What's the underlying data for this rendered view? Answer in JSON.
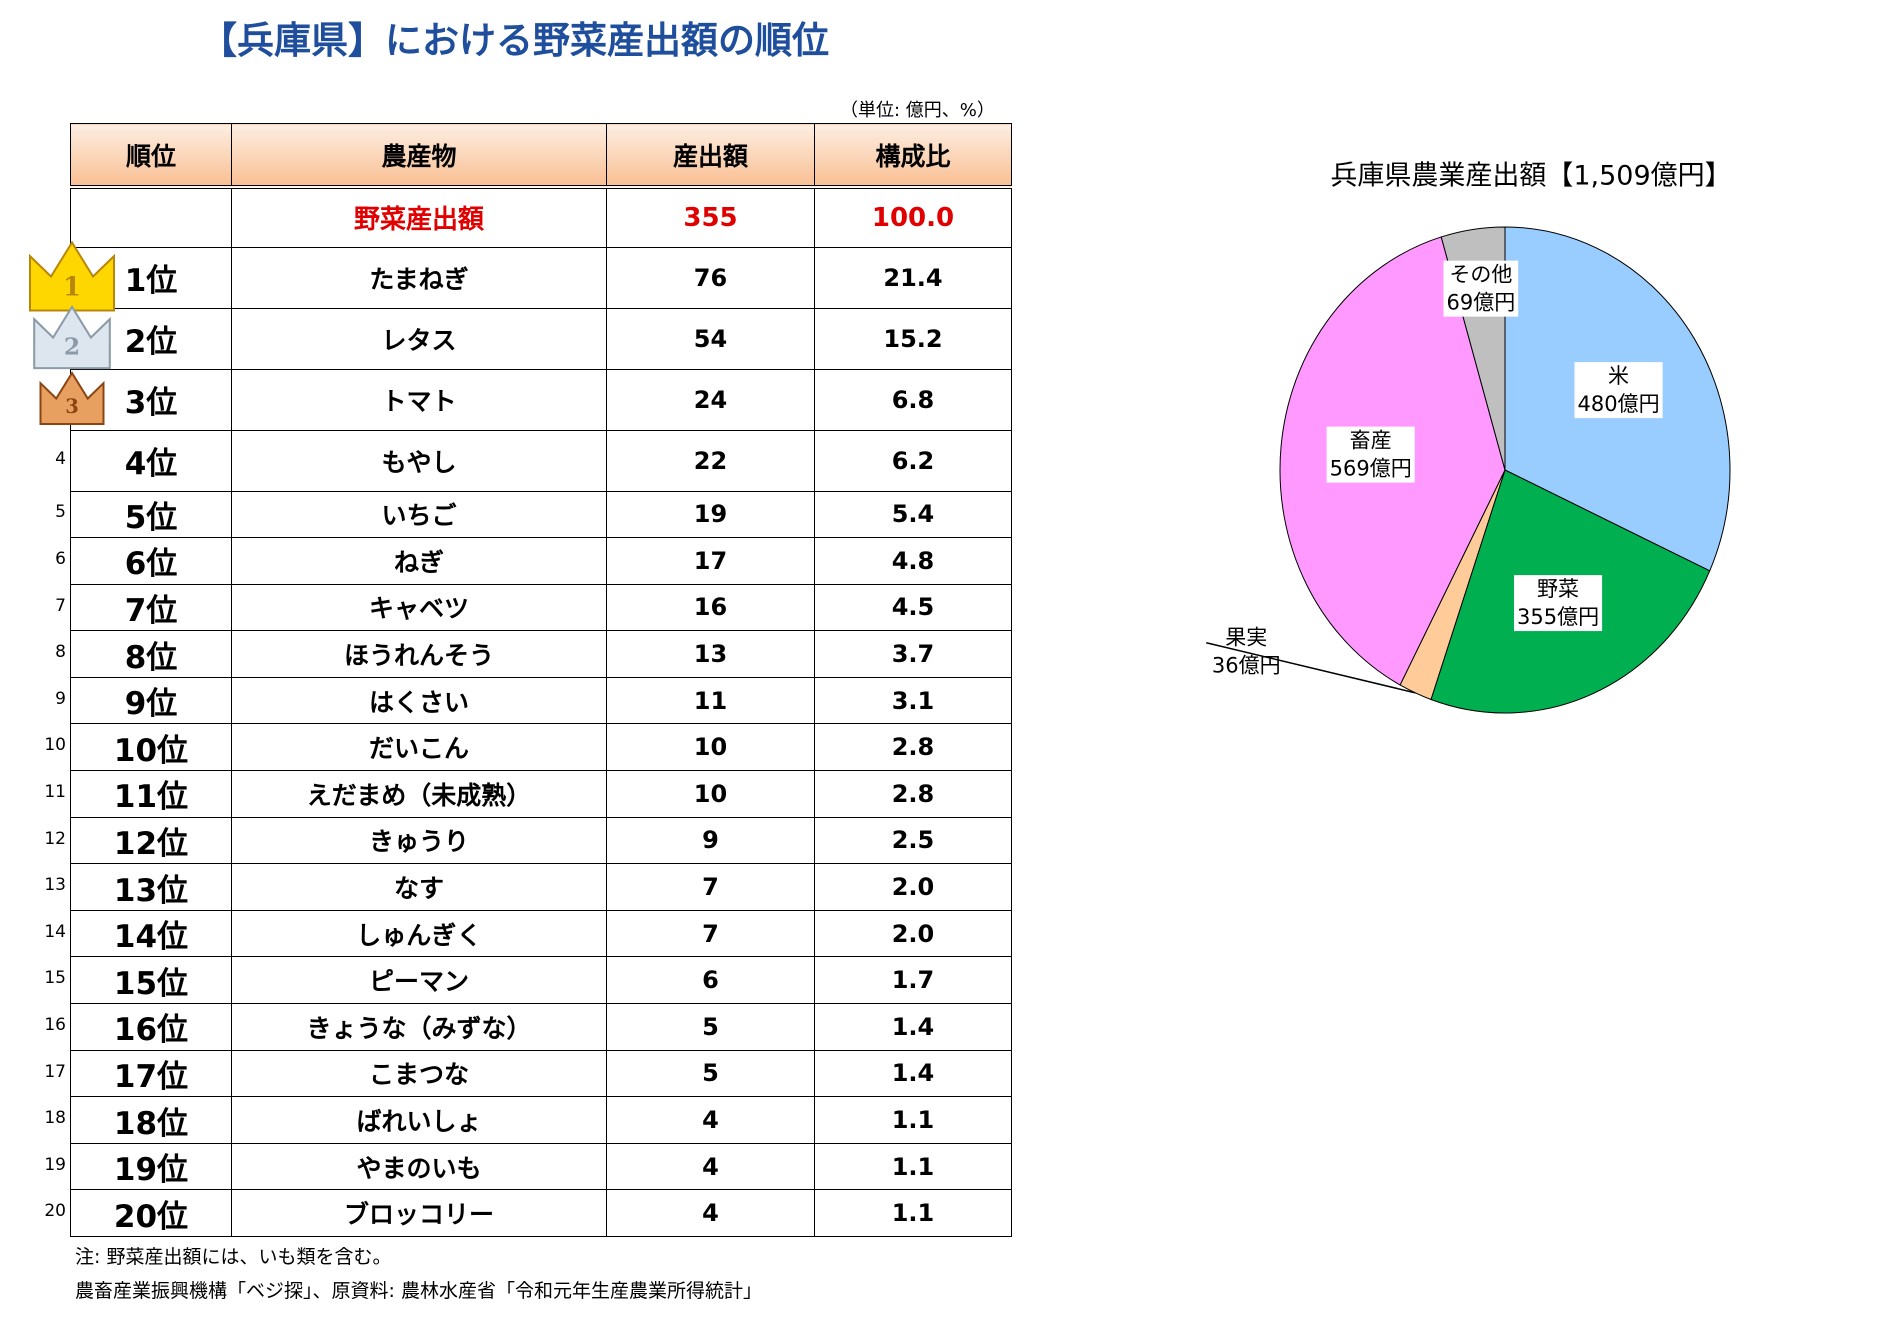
{
  "title": "【兵庫県】における野菜産出額の順位",
  "unit": "（単位: 億円、%）",
  "table": {
    "header": [
      "順位",
      "農産物",
      "産出額",
      "構成比"
    ],
    "total": [
      "野菜産出額",
      "355",
      "100.0"
    ],
    "rows": [
      [
        "1",
        "1位",
        "たまねぎ",
        "76",
        "21.4"
      ],
      [
        "2",
        "2位",
        "レタス",
        "54",
        "15.2"
      ],
      [
        "3",
        "3位",
        "トマト",
        "24",
        "6.8"
      ],
      [
        "4",
        "4位",
        "もやし",
        "22",
        "6.2"
      ],
      [
        "5",
        "5位",
        "いちご",
        "19",
        "5.4"
      ],
      [
        "6",
        "6位",
        "ねぎ",
        "17",
        "4.8"
      ],
      [
        "7",
        "7位",
        "キャベツ",
        "16",
        "4.5"
      ],
      [
        "8",
        "8位",
        "ほうれんそう",
        "13",
        "3.7"
      ],
      [
        "9",
        "9位",
        "はくさい",
        "11",
        "3.1"
      ],
      [
        "10",
        "10位",
        "だいこん",
        "10",
        "2.8"
      ],
      [
        "11",
        "11位",
        "えだまめ（未成熟）",
        "10",
        "2.8"
      ],
      [
        "12",
        "12位",
        "きゅうり",
        "9",
        "2.5"
      ],
      [
        "13",
        "13位",
        "なす",
        "7",
        "2.0"
      ],
      [
        "14",
        "14位",
        "しゅんぎく",
        "7",
        "2.0"
      ],
      [
        "15",
        "15位",
        "ピーマン",
        "6",
        "1.7"
      ],
      [
        "16",
        "16位",
        "きょうな（みずな）",
        "5",
        "1.4"
      ],
      [
        "17",
        "17位",
        "こまつな",
        "5",
        "1.4"
      ],
      [
        "18",
        "18位",
        "ばれいしょ",
        "4",
        "1.1"
      ],
      [
        "19",
        "19位",
        "やまのいも",
        "4",
        "1.1"
      ],
      [
        "20",
        "20位",
        "ブロッコリー",
        "4",
        "1.1"
      ]
    ]
  },
  "notes": [
    "注: 野菜産出額には、いも類を含む。",
    "農畜産業振興機構「ベジ探」、原資料: 農林水産省「令和元年生産農業所得統計」"
  ],
  "chart_data": {
    "type": "pie",
    "title": "兵庫県農業産出額【1,509億円】",
    "categories": [
      "米",
      "野菜",
      "果実",
      "畜産",
      "その他"
    ],
    "values": [
      480,
      355,
      36,
      569,
      69
    ],
    "value_labels": [
      "480億円",
      "355億円",
      "36億円",
      "569億円",
      "69億円"
    ],
    "colors": [
      "#99ccff",
      "#00b050",
      "#ffcc99",
      "#ff99ff",
      "#bfbfbf"
    ]
  }
}
